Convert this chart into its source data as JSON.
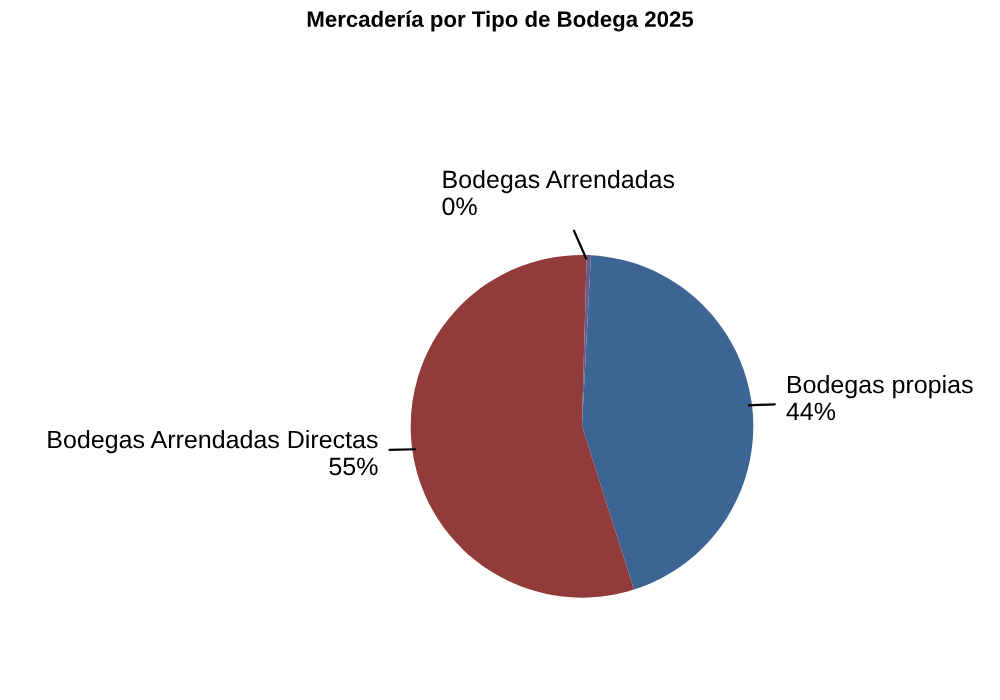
{
  "chart_data": {
    "type": "pie",
    "title": "Mercadería por Tipo de Bodega 2025",
    "categories": [
      "Bodegas propias",
      "Bodegas Arrendadas Directas",
      "Bodegas Arrendadas"
    ],
    "values": [
      44,
      55,
      0.4
    ],
    "value_labels": [
      "44%",
      "55%",
      "0%"
    ],
    "colors": [
      "#3d6593",
      "#913b3a",
      "#6a5a8a"
    ]
  }
}
